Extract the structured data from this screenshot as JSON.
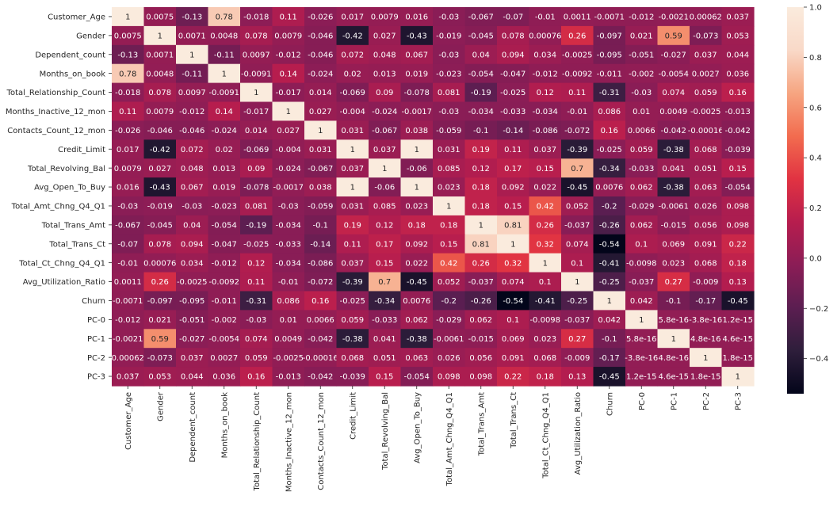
{
  "chart_data": {
    "type": "heatmap",
    "title": "",
    "xlabel": "",
    "ylabel": "",
    "annotate": true,
    "labels": [
      "Customer_Age",
      "Gender",
      "Dependent_count",
      "Months_on_book",
      "Total_Relationship_Count",
      "Months_Inactive_12_mon",
      "Contacts_Count_12_mon",
      "Credit_Limit",
      "Total_Revolving_Bal",
      "Avg_Open_To_Buy",
      "Total_Amt_Chng_Q4_Q1",
      "Total_Trans_Amt",
      "Total_Trans_Ct",
      "Total_Ct_Chng_Q4_Q1",
      "Avg_Utilization_Ratio",
      "Churn",
      "PC-0",
      "PC-1",
      "PC-2",
      "PC-3"
    ],
    "values": [
      [
        1,
        0.0075,
        -0.13,
        0.78,
        -0.018,
        0.11,
        -0.026,
        0.017,
        0.0079,
        0.016,
        -0.03,
        -0.067,
        -0.07,
        -0.01,
        0.0011,
        -0.0071,
        -0.012,
        -0.0021,
        0.00062,
        0.037
      ],
      [
        0.0075,
        1,
        0.0071,
        0.0048,
        0.078,
        0.0079,
        -0.046,
        -0.42,
        0.027,
        -0.43,
        -0.019,
        -0.045,
        0.078,
        0.00076,
        0.26,
        -0.097,
        0.021,
        0.59,
        -0.073,
        0.053
      ],
      [
        -0.13,
        0.0071,
        1,
        -0.11,
        0.0097,
        -0.012,
        -0.046,
        0.072,
        0.048,
        0.067,
        -0.03,
        0.04,
        0.094,
        0.034,
        -0.0025,
        -0.095,
        -0.051,
        -0.027,
        0.037,
        0.044
      ],
      [
        0.78,
        0.0048,
        -0.11,
        1,
        -0.0091,
        0.14,
        -0.024,
        0.02,
        0.013,
        0.019,
        -0.023,
        -0.054,
        -0.047,
        -0.012,
        -0.0092,
        -0.011,
        -0.002,
        -0.0054,
        0.0027,
        0.036
      ],
      [
        -0.018,
        0.078,
        0.0097,
        -0.0091,
        1,
        -0.017,
        0.014,
        -0.069,
        0.09,
        -0.078,
        0.081,
        -0.19,
        -0.025,
        0.12,
        0.11,
        -0.31,
        -0.03,
        0.074,
        0.059,
        0.16
      ],
      [
        0.11,
        0.0079,
        -0.012,
        0.14,
        -0.017,
        1,
        0.027,
        -0.004,
        -0.024,
        -0.0017,
        -0.03,
        -0.034,
        -0.033,
        -0.034,
        -0.01,
        0.086,
        0.01,
        0.0049,
        -0.0025,
        -0.013
      ],
      [
        -0.026,
        -0.046,
        -0.046,
        -0.024,
        0.014,
        0.027,
        1,
        0.031,
        -0.067,
        0.038,
        -0.059,
        -0.1,
        -0.14,
        -0.086,
        -0.072,
        0.16,
        0.0066,
        -0.042,
        -0.00016,
        -0.042
      ],
      [
        0.017,
        -0.42,
        0.072,
        0.02,
        -0.069,
        -0.004,
        0.031,
        1,
        0.037,
        1,
        0.031,
        0.19,
        0.11,
        0.037,
        -0.39,
        -0.025,
        0.059,
        -0.38,
        0.068,
        -0.039
      ],
      [
        0.0079,
        0.027,
        0.048,
        0.013,
        0.09,
        -0.024,
        -0.067,
        0.037,
        1,
        -0.06,
        0.085,
        0.12,
        0.17,
        0.15,
        0.7,
        -0.34,
        -0.033,
        0.041,
        0.051,
        0.15
      ],
      [
        0.016,
        -0.43,
        0.067,
        0.019,
        -0.078,
        -0.0017,
        0.038,
        1,
        -0.06,
        1,
        0.023,
        0.18,
        0.092,
        0.022,
        -0.45,
        0.0076,
        0.062,
        -0.38,
        0.063,
        -0.054
      ],
      [
        -0.03,
        -0.019,
        -0.03,
        -0.023,
        0.081,
        -0.03,
        -0.059,
        0.031,
        0.085,
        0.023,
        1,
        0.18,
        0.15,
        0.42,
        0.052,
        -0.2,
        -0.029,
        -0.0061,
        0.026,
        0.098
      ],
      [
        -0.067,
        -0.045,
        0.04,
        -0.054,
        -0.19,
        -0.034,
        -0.1,
        0.19,
        0.12,
        0.18,
        0.18,
        1,
        0.81,
        0.26,
        -0.037,
        -0.26,
        0.062,
        -0.015,
        0.056,
        0.098
      ],
      [
        -0.07,
        0.078,
        0.094,
        -0.047,
        -0.025,
        -0.033,
        -0.14,
        0.11,
        0.17,
        0.092,
        0.15,
        0.81,
        1,
        0.32,
        0.074,
        -0.54,
        0.1,
        0.069,
        0.091,
        0.22
      ],
      [
        -0.01,
        0.00076,
        0.034,
        -0.012,
        0.12,
        -0.034,
        -0.086,
        0.037,
        0.15,
        0.022,
        0.42,
        0.26,
        0.32,
        1,
        0.1,
        -0.41,
        -0.0098,
        0.023,
        0.068,
        0.18
      ],
      [
        0.0011,
        0.26,
        -0.0025,
        -0.0092,
        0.11,
        -0.01,
        -0.072,
        -0.39,
        0.7,
        -0.45,
        0.052,
        -0.037,
        0.074,
        0.1,
        1,
        -0.25,
        -0.037,
        0.27,
        -0.009,
        0.13
      ],
      [
        -0.0071,
        -0.097,
        -0.095,
        -0.011,
        -0.31,
        0.086,
        0.16,
        -0.025,
        -0.34,
        0.0076,
        -0.2,
        -0.26,
        -0.54,
        -0.41,
        -0.25,
        1,
        0.042,
        -0.1,
        -0.17,
        -0.45
      ],
      [
        -0.012,
        0.021,
        -0.051,
        -0.002,
        -0.03,
        0.01,
        0.0066,
        0.059,
        -0.033,
        0.062,
        -0.029,
        0.062,
        0.1,
        -0.0098,
        -0.037,
        0.042,
        1,
        5.8e-16,
        -3.8e-16,
        1.2e-15
      ],
      [
        -0.0021,
        0.59,
        -0.027,
        -0.0054,
        0.074,
        0.0049,
        -0.042,
        -0.38,
        0.041,
        -0.38,
        -0.0061,
        -0.015,
        0.069,
        0.023,
        0.27,
        -0.1,
        5.8e-16,
        1,
        4.8e-16,
        4.6e-15
      ],
      [
        0.00062,
        -0.073,
        0.037,
        0.0027,
        0.059,
        -0.0025,
        -0.00016,
        0.068,
        0.051,
        0.063,
        0.026,
        0.056,
        0.091,
        0.068,
        -0.009,
        -0.17,
        -3.8e-16,
        4.8e-16,
        1,
        1.8e-15
      ],
      [
        0.037,
        0.053,
        0.044,
        0.036,
        0.16,
        -0.013,
        -0.042,
        -0.039,
        0.15,
        -0.054,
        0.098,
        0.098,
        0.22,
        0.18,
        0.13,
        -0.45,
        1.2e-15,
        4.6e-15,
        1.8e-15,
        1
      ]
    ],
    "annotations": [
      [
        "1",
        "0.0075",
        "-0.13",
        "0.78",
        "-0.018",
        "0.11",
        "-0.026",
        "0.017",
        "0.0079",
        "0.016",
        "-0.03",
        "-0.067",
        "-0.07",
        "-0.01",
        "0.0011",
        "-0.0071",
        "-0.012",
        "-0.0021",
        "0.00062",
        "0.037"
      ],
      [
        "0.0075",
        "1",
        "0.0071",
        "0.0048",
        "0.078",
        "0.0079",
        "-0.046",
        "-0.42",
        "0.027",
        "-0.43",
        "-0.019",
        "-0.045",
        "0.078",
        "0.00076",
        "0.26",
        "-0.097",
        "0.021",
        "0.59",
        "-0.073",
        "0.053"
      ],
      [
        "-0.13",
        "0.0071",
        "1",
        "-0.11",
        "0.0097",
        "-0.012",
        "-0.046",
        "0.072",
        "0.048",
        "0.067",
        "-0.03",
        "0.04",
        "0.094",
        "0.034",
        "-0.0025",
        "-0.095",
        "-0.051",
        "-0.027",
        "0.037",
        "0.044"
      ],
      [
        "0.78",
        "0.0048",
        "-0.11",
        "1",
        "-0.0091",
        "0.14",
        "-0.024",
        "0.02",
        "0.013",
        "0.019",
        "-0.023",
        "-0.054",
        "-0.047",
        "-0.012",
        "-0.0092",
        "-0.011",
        "-0.002",
        "-0.0054",
        "0.0027",
        "0.036"
      ],
      [
        "-0.018",
        "0.078",
        "0.0097",
        "-0.0091",
        "1",
        "-0.017",
        "0.014",
        "-0.069",
        "0.09",
        "-0.078",
        "0.081",
        "-0.19",
        "-0.025",
        "0.12",
        "0.11",
        "-0.31",
        "-0.03",
        "0.074",
        "0.059",
        "0.16"
      ],
      [
        "0.11",
        "0.0079",
        "-0.012",
        "0.14",
        "-0.017",
        "1",
        "0.027",
        "-0.004",
        "-0.024",
        "-0.0017",
        "-0.03",
        "-0.034",
        "-0.033",
        "-0.034",
        "-0.01",
        "0.086",
        "0.01",
        "0.0049",
        "-0.0025",
        "-0.013"
      ],
      [
        "-0.026",
        "-0.046",
        "-0.046",
        "-0.024",
        "0.014",
        "0.027",
        "1",
        "0.031",
        "-0.067",
        "0.038",
        "-0.059",
        "-0.1",
        "-0.14",
        "-0.086",
        "-0.072",
        "0.16",
        "0.0066",
        "-0.042",
        "-0.00016",
        "-0.042"
      ],
      [
        "0.017",
        "-0.42",
        "0.072",
        "0.02",
        "-0.069",
        "-0.004",
        "0.031",
        "1",
        "0.037",
        "1",
        "0.031",
        "0.19",
        "0.11",
        "0.037",
        "-0.39",
        "-0.025",
        "0.059",
        "-0.38",
        "0.068",
        "-0.039"
      ],
      [
        "0.0079",
        "0.027",
        "0.048",
        "0.013",
        "0.09",
        "-0.024",
        "-0.067",
        "0.037",
        "1",
        "-0.06",
        "0.085",
        "0.12",
        "0.17",
        "0.15",
        "0.7",
        "-0.34",
        "-0.033",
        "0.041",
        "0.051",
        "0.15"
      ],
      [
        "0.016",
        "-0.43",
        "0.067",
        "0.019",
        "-0.078",
        "-0.0017",
        "0.038",
        "1",
        "-0.06",
        "1",
        "0.023",
        "0.18",
        "0.092",
        "0.022",
        "-0.45",
        "0.0076",
        "0.062",
        "-0.38",
        "0.063",
        "-0.054"
      ],
      [
        "-0.03",
        "-0.019",
        "-0.03",
        "-0.023",
        "0.081",
        "-0.03",
        "-0.059",
        "0.031",
        "0.085",
        "0.023",
        "1",
        "0.18",
        "0.15",
        "0.42",
        "0.052",
        "-0.2",
        "-0.029",
        "-0.0061",
        "0.026",
        "0.098"
      ],
      [
        "-0.067",
        "-0.045",
        "0.04",
        "-0.054",
        "-0.19",
        "-0.034",
        "-0.1",
        "0.19",
        "0.12",
        "0.18",
        "0.18",
        "1",
        "0.81",
        "0.26",
        "-0.037",
        "-0.26",
        "0.062",
        "-0.015",
        "0.056",
        "0.098"
      ],
      [
        "-0.07",
        "0.078",
        "0.094",
        "-0.047",
        "-0.025",
        "-0.033",
        "-0.14",
        "0.11",
        "0.17",
        "0.092",
        "0.15",
        "0.81",
        "1",
        "0.32",
        "0.074",
        "-0.54",
        "0.1",
        "0.069",
        "0.091",
        "0.22"
      ],
      [
        "-0.01",
        "0.00076",
        "0.034",
        "-0.012",
        "0.12",
        "-0.034",
        "-0.086",
        "0.037",
        "0.15",
        "0.022",
        "0.42",
        "0.26",
        "0.32",
        "1",
        "0.1",
        "-0.41",
        "-0.0098",
        "0.023",
        "0.068",
        "0.18"
      ],
      [
        "0.0011",
        "0.26",
        "-0.0025",
        "-0.0092",
        "0.11",
        "-0.01",
        "-0.072",
        "-0.39",
        "0.7",
        "-0.45",
        "0.052",
        "-0.037",
        "0.074",
        "0.1",
        "1",
        "-0.25",
        "-0.037",
        "0.27",
        "-0.009",
        "0.13"
      ],
      [
        "-0.0071",
        "-0.097",
        "-0.095",
        "-0.011",
        "-0.31",
        "0.086",
        "0.16",
        "-0.025",
        "-0.34",
        "0.0076",
        "-0.2",
        "-0.26",
        "-0.54",
        "-0.41",
        "-0.25",
        "1",
        "0.042",
        "-0.1",
        "-0.17",
        "-0.45"
      ],
      [
        "-0.012",
        "0.021",
        "-0.051",
        "-0.002",
        "-0.03",
        "0.01",
        "0.0066",
        "0.059",
        "-0.033",
        "0.062",
        "-0.029",
        "0.062",
        "0.1",
        "-0.0098",
        "-0.037",
        "0.042",
        "1",
        "5.8e-16",
        "-3.8e-16",
        "1.2e-15"
      ],
      [
        "-0.0021",
        "0.59",
        "-0.027",
        "-0.0054",
        "0.074",
        "0.0049",
        "-0.042",
        "-0.38",
        "0.041",
        "-0.38",
        "-0.0061",
        "-0.015",
        "0.069",
        "0.023",
        "0.27",
        "-0.1",
        "5.8e-16",
        "1",
        "4.8e-16",
        "4.6e-15"
      ],
      [
        "0.00062",
        "-0.073",
        "0.037",
        "0.0027",
        "0.059",
        "-0.0025",
        "-0.00016",
        "0.068",
        "0.051",
        "0.063",
        "0.026",
        "0.056",
        "0.091",
        "0.068",
        "-0.009",
        "-0.17",
        "-3.8e-16",
        "4.8e-16",
        "1",
        "1.8e-15"
      ],
      [
        "0.037",
        "0.053",
        "0.044",
        "0.036",
        "0.16",
        "-0.013",
        "-0.042",
        "-0.039",
        "0.15",
        "-0.054",
        "0.098",
        "0.098",
        "0.22",
        "0.18",
        "0.13",
        "-0.45",
        "1.2e-15",
        "4.6e-15",
        "1.8e-15",
        "1"
      ]
    ],
    "vmin": -0.54,
    "vmax": 1,
    "colormap": "rocket",
    "colorbar": {
      "ticks": [
        -0.4,
        -0.2,
        0.0,
        0.2,
        0.4,
        0.6,
        0.8,
        1.0
      ],
      "tick_labels": [
        "−0.4",
        "−0.2",
        "0.0",
        "0.2",
        "0.4",
        "0.6",
        "0.8",
        "1.0"
      ],
      "placement": "right"
    },
    "colors": {
      "stops": [
        "#03051a",
        "#2e1e3b",
        "#5b1e51",
        "#8b1d56",
        "#b71d4e",
        "#e13342",
        "#f26c4f",
        "#f6a581",
        "#f9d9c8",
        "#faebdd"
      ],
      "background": "#ffffff",
      "text_dark": "#262626",
      "text_light": "#ffffff"
    }
  }
}
